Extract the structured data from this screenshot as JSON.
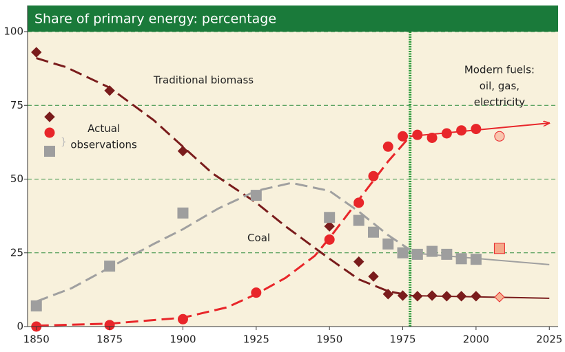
{
  "chart_data": {
    "type": "line",
    "title": "Share of primary energy: percentage",
    "xlim": [
      1847,
      2028
    ],
    "ylim": [
      0,
      100
    ],
    "xticks": [
      1850,
      1875,
      1900,
      1925,
      1950,
      1975,
      2000,
      2025
    ],
    "yticks": [
      0,
      25,
      50,
      75,
      100
    ],
    "grid": true,
    "reference_x": 1977.5,
    "annotations": [
      {
        "lines": [
          "Traditional biomass"
        ],
        "x": 1890,
        "y": 83.5
      },
      {
        "lines": [
          "Coal"
        ],
        "x": 1922,
        "y": 30
      },
      {
        "lines": [
          "Modern fuels:",
          "oil, gas,",
          "electricity"
        ],
        "x": 2008,
        "y": 87
      },
      {
        "lines": [
          "Actual",
          "observations"
        ],
        "x": 1873,
        "y": 67
      }
    ],
    "legend_markers": [
      "diamond",
      "circle",
      "square"
    ],
    "series": [
      {
        "kind": "fit",
        "color": "#7a1c1c",
        "dash": true,
        "x": [
          1850,
          1860,
          1875,
          1890,
          1900,
          1910,
          1925,
          1935,
          1950,
          1960,
          1970,
          1977.5
        ],
        "values": [
          91,
          88,
          81,
          70,
          61,
          52,
          42,
          34,
          23,
          16,
          12,
          10.5
        ]
      },
      {
        "kind": "fit",
        "color": "#7a1c1c",
        "dash": false,
        "x": [
          1977.5,
          2025
        ],
        "values": [
          10.5,
          9.6
        ]
      },
      {
        "kind": "fit",
        "color": "#a0a0a0",
        "dash": true,
        "x": [
          1850,
          1862,
          1875,
          1890,
          1900,
          1912,
          1925,
          1937,
          1950,
          1960,
          1970,
          1977.5
        ],
        "values": [
          8.5,
          13,
          20,
          28,
          33,
          40,
          46,
          48.7,
          46,
          39,
          31,
          26
        ]
      },
      {
        "kind": "fit",
        "color": "#a0a0a0",
        "dash": false,
        "x": [
          1977.5,
          2025
        ],
        "values": [
          25,
          21
        ]
      },
      {
        "kind": "fit",
        "color": "#e8262a",
        "dash": true,
        "x": [
          1850,
          1875,
          1900,
          1915,
          1925,
          1935,
          1945,
          1950,
          1960,
          1970,
          1977.5
        ],
        "values": [
          0.3,
          1,
          3,
          6.5,
          11,
          16.5,
          24,
          30,
          43,
          56,
          64.5
        ]
      },
      {
        "kind": "fit",
        "color": "#e8262a",
        "dash": false,
        "arrow": true,
        "x": [
          1977.5,
          2025
        ],
        "values": [
          64.5,
          69
        ]
      },
      {
        "kind": "points",
        "marker": "diamond",
        "color": "#7a1c1c",
        "fill": "#7a1c1c",
        "x": [
          1850,
          1875,
          1900,
          1950,
          1960,
          1965,
          1970,
          1975,
          1980,
          1985,
          1990,
          1995,
          2000
        ],
        "values": [
          93,
          80,
          59.5,
          34,
          22,
          17,
          11,
          10.5,
          10.3,
          10.5,
          10.3,
          10.3,
          10.3
        ]
      },
      {
        "kind": "points",
        "marker": "square",
        "color": "#9e9e9e",
        "fill": "#9e9e9e",
        "x": [
          1850,
          1875,
          1900,
          1925,
          1950,
          1960,
          1965,
          1970,
          1975,
          1980,
          1985,
          1990,
          1995,
          2000
        ],
        "values": [
          7,
          20.5,
          38.5,
          44.5,
          37,
          36,
          32,
          28,
          25,
          24.5,
          25.5,
          24.5,
          23,
          22.8
        ]
      },
      {
        "kind": "points",
        "marker": "circle",
        "color": "#e8262a",
        "fill": "#e8262a",
        "x": [
          1850,
          1875,
          1900,
          1925,
          1950,
          1960,
          1965,
          1970,
          1975,
          1980,
          1985,
          1990,
          1995,
          2000
        ],
        "values": [
          0,
          0.5,
          2.5,
          11.5,
          29.5,
          42,
          51,
          61,
          64.5,
          65,
          64,
          65.5,
          66.5,
          67
        ]
      },
      {
        "kind": "points",
        "marker": "diamond",
        "color": "#e8262a",
        "fill": "#f6b494",
        "x": [
          2008
        ],
        "values": [
          10
        ]
      },
      {
        "kind": "points",
        "marker": "square",
        "color": "#e8262a",
        "fill": "#f5a98a",
        "x": [
          2008
        ],
        "values": [
          26.5
        ]
      },
      {
        "kind": "points",
        "marker": "circle",
        "color": "#e8262a",
        "fill": "#f9c6ae",
        "x": [
          2008
        ],
        "values": [
          64.5
        ]
      }
    ]
  }
}
